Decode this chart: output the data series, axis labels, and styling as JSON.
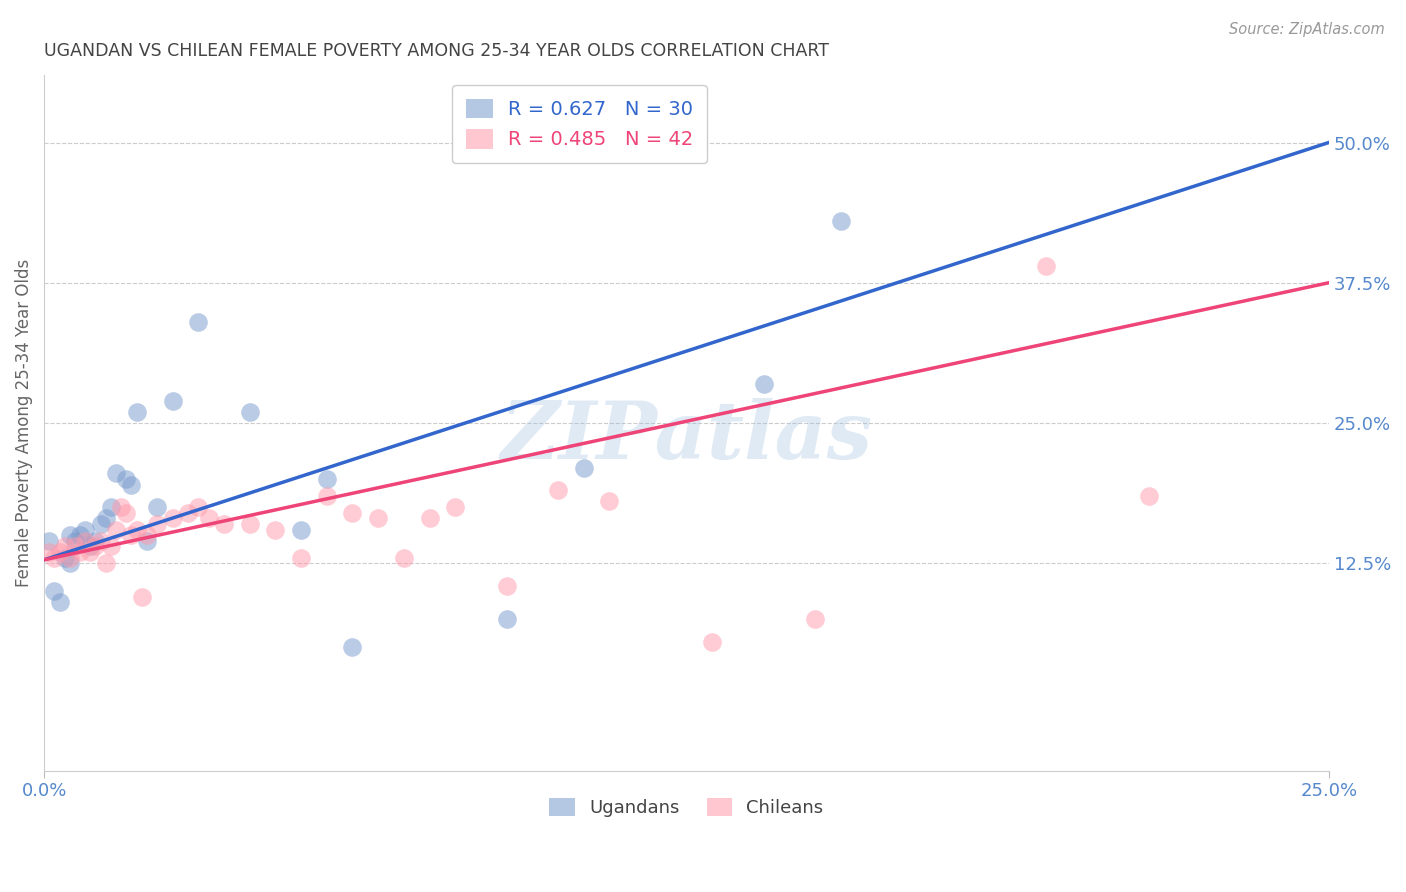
{
  "title": "UGANDAN VS CHILEAN FEMALE POVERTY AMONG 25-34 YEAR OLDS CORRELATION CHART",
  "source": "Source: ZipAtlas.com",
  "ylabel": "Female Poverty Among 25-34 Year Olds",
  "ytick_labels": [
    "12.5%",
    "25.0%",
    "37.5%",
    "50.0%"
  ],
  "ytick_values": [
    0.125,
    0.25,
    0.375,
    0.5
  ],
  "xlim": [
    0.0,
    0.25
  ],
  "ylim": [
    -0.06,
    0.56
  ],
  "ugandan_x": [
    0.001,
    0.002,
    0.003,
    0.004,
    0.005,
    0.005,
    0.006,
    0.007,
    0.008,
    0.009,
    0.01,
    0.011,
    0.012,
    0.013,
    0.014,
    0.016,
    0.017,
    0.018,
    0.02,
    0.022,
    0.025,
    0.03,
    0.04,
    0.05,
    0.055,
    0.06,
    0.09,
    0.105,
    0.14,
    0.155
  ],
  "ugandan_y": [
    0.145,
    0.1,
    0.09,
    0.13,
    0.15,
    0.125,
    0.145,
    0.15,
    0.155,
    0.14,
    0.145,
    0.16,
    0.165,
    0.175,
    0.205,
    0.2,
    0.195,
    0.26,
    0.145,
    0.175,
    0.27,
    0.34,
    0.26,
    0.155,
    0.2,
    0.05,
    0.075,
    0.21,
    0.285,
    0.43
  ],
  "chilean_x": [
    0.001,
    0.002,
    0.003,
    0.004,
    0.005,
    0.006,
    0.007,
    0.008,
    0.009,
    0.01,
    0.011,
    0.012,
    0.013,
    0.014,
    0.015,
    0.016,
    0.017,
    0.018,
    0.019,
    0.02,
    0.022,
    0.025,
    0.028,
    0.03,
    0.032,
    0.035,
    0.04,
    0.045,
    0.05,
    0.055,
    0.06,
    0.065,
    0.07,
    0.075,
    0.08,
    0.09,
    0.1,
    0.11,
    0.13,
    0.15,
    0.195,
    0.215
  ],
  "chilean_y": [
    0.135,
    0.13,
    0.135,
    0.14,
    0.13,
    0.14,
    0.135,
    0.145,
    0.135,
    0.14,
    0.145,
    0.125,
    0.14,
    0.155,
    0.175,
    0.17,
    0.15,
    0.155,
    0.095,
    0.15,
    0.16,
    0.165,
    0.17,
    0.175,
    0.165,
    0.16,
    0.16,
    0.155,
    0.13,
    0.185,
    0.17,
    0.165,
    0.13,
    0.165,
    0.175,
    0.105,
    0.19,
    0.18,
    0.055,
    0.075,
    0.39,
    0.185
  ],
  "ugandan_color": "#7799cc",
  "chilean_color": "#ff99aa",
  "ugandan_line_color": "#3366cc",
  "chilean_line_color": "#ee4477",
  "ugandan_R": 0.627,
  "ugandan_N": 30,
  "chilean_R": 0.485,
  "chilean_N": 42,
  "watermark": "ZIPatlas",
  "title_color": "#444444",
  "axis_label_color": "#666666",
  "tick_color": "#5588cc",
  "grid_color": "#cccccc",
  "ug_line_x": [
    0.0,
    0.25
  ],
  "ug_line_y": [
    0.128,
    0.5
  ],
  "ch_line_x": [
    0.0,
    0.25
  ],
  "ch_line_y": [
    0.128,
    0.375
  ]
}
